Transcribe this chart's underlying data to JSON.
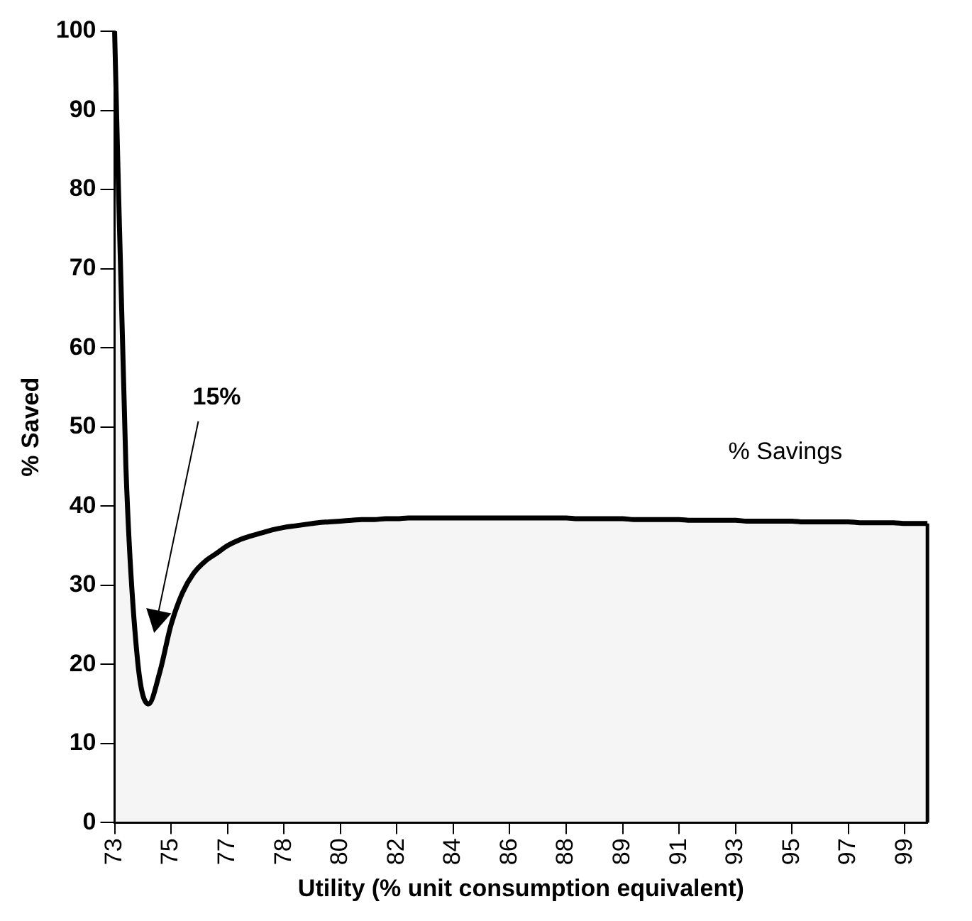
{
  "chart_data": {
    "type": "area",
    "xlabel": "Utility (% unit consumption equivalent)",
    "ylabel": "% Saved",
    "categories": [
      "73",
      null,
      null,
      null,
      null,
      "75",
      null,
      null,
      null,
      null,
      "77",
      null,
      null,
      null,
      null,
      "78",
      null,
      null,
      null,
      null,
      "80",
      null,
      null,
      null,
      null,
      "82",
      null,
      null,
      null,
      null,
      "84",
      null,
      null,
      null,
      null,
      "86",
      null,
      null,
      null,
      null,
      "88",
      null,
      null,
      null,
      null,
      "89",
      null,
      null,
      null,
      null,
      "91",
      null,
      null,
      null,
      null,
      "93",
      null,
      null,
      null,
      null,
      "95",
      null,
      null,
      null,
      null,
      "97",
      null,
      null,
      null,
      null,
      "99",
      null,
      null
    ],
    "series": [
      {
        "name": "% Savings",
        "color": "#000000",
        "values": [
          100,
          45,
          21,
          15,
          19,
          25,
          29,
          31.5,
          33,
          34,
          35,
          35.7,
          36.2,
          36.6,
          37,
          37.3,
          37.5,
          37.7,
          37.9,
          38,
          38.1,
          38.2,
          38.3,
          38.3,
          38.4,
          38.4,
          38.5,
          38.5,
          38.5,
          38.5,
          38.5,
          38.5,
          38.5,
          38.5,
          38.5,
          38.5,
          38.5,
          38.5,
          38.5,
          38.5,
          38.5,
          38.4,
          38.4,
          38.4,
          38.4,
          38.4,
          38.3,
          38.3,
          38.3,
          38.3,
          38.3,
          38.2,
          38.2,
          38.2,
          38.2,
          38.2,
          38.1,
          38.1,
          38.1,
          38.1,
          38.1,
          38,
          38,
          38,
          38,
          38,
          37.9,
          37.9,
          37.9,
          37.9,
          37.8,
          37.8,
          37.8
        ]
      }
    ],
    "ylim": [
      0,
      100
    ],
    "yticks": [
      0,
      10,
      20,
      30,
      40,
      50,
      60,
      70,
      80,
      90,
      100
    ],
    "grid": false,
    "legend": false,
    "annotations": [
      "15%"
    ]
  }
}
